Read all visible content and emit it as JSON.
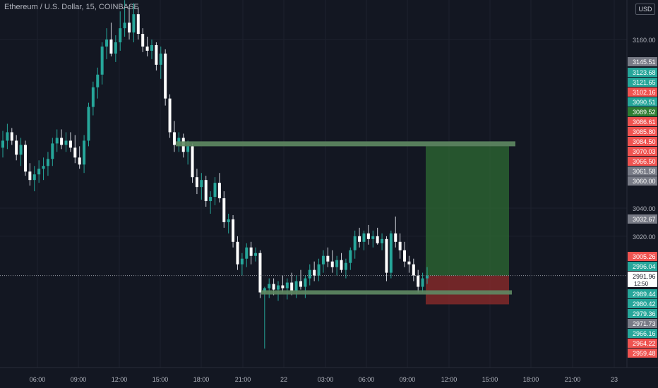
{
  "header": {
    "title": "Ethereum / U.S. Dollar, 15, COINBASE",
    "currency_button": "USD"
  },
  "chart_data": {
    "type": "candlestick",
    "symbol": "Ethereum / U.S. Dollar",
    "interval": "15",
    "exchange": "COINBASE",
    "ylim": [
      2930,
      3200
    ],
    "x_ticks": [
      "06:00",
      "09:00",
      "12:00",
      "15:00",
      "18:00",
      "21:00",
      "22",
      "03:00",
      "06:00",
      "09:00",
      "12:00",
      "15:00",
      "18:00",
      "21:00",
      "23"
    ],
    "y_ticks": [
      3160,
      3040,
      3020
    ],
    "price_tags": [
      {
        "text": "3145.51",
        "color": "#787b86"
      },
      {
        "text": "3123.68",
        "color": "#26a69a"
      },
      {
        "text": "3121.65",
        "color": "#26a69a"
      },
      {
        "text": "3102.16",
        "color": "#ef5350"
      },
      {
        "text": "3090.51",
        "color": "#26a69a"
      },
      {
        "text": "3089.52",
        "color": "#2e7d32"
      },
      {
        "text": "3086.61",
        "color": "#ef5350"
      },
      {
        "text": "3085.80",
        "color": "#ef5350"
      },
      {
        "text": "3084.50",
        "color": "#ef5350"
      },
      {
        "text": "3070.03",
        "color": "#ef5350"
      },
      {
        "text": "3066.50",
        "color": "#ef5350"
      },
      {
        "text": "3061.58",
        "color": "#787b86"
      },
      {
        "text": "3060.00",
        "color": "#787b86"
      },
      {
        "text": "3032.67",
        "color": "#787b86"
      },
      {
        "text": "3005.26",
        "color": "#ef5350"
      },
      {
        "text": "2996.04",
        "color": "#26a69a"
      },
      {
        "text": "2991.96",
        "color": "#ffffff",
        "dark_text": true,
        "sub": "12:50"
      },
      {
        "text": "2989.44",
        "color": "#26a69a"
      },
      {
        "text": "2980.42",
        "color": "#26a69a"
      },
      {
        "text": "2979.36",
        "color": "#26a69a"
      },
      {
        "text": "2971.73",
        "color": "#787b86"
      },
      {
        "text": "2966.16",
        "color": "#26a69a"
      },
      {
        "text": "2964.22",
        "color": "#ef5350"
      },
      {
        "text": "2959.48",
        "color": "#ef5350"
      }
    ],
    "levels": [
      {
        "price": 3086,
        "from": "15:30",
        "to": "16:05"
      },
      {
        "price": 2980,
        "from": "20:55",
        "to": "16:00"
      }
    ],
    "position": {
      "entry": 2991.96,
      "target": 3084,
      "stop": 2971.5
    },
    "series": [
      {
        "o": 3083,
        "h": 3095,
        "l": 3076,
        "c": 3088
      },
      {
        "o": 3088,
        "h": 3100,
        "l": 3082,
        "c": 3094
      },
      {
        "o": 3094,
        "h": 3097,
        "l": 3085,
        "c": 3088
      },
      {
        "o": 3088,
        "h": 3092,
        "l": 3074,
        "c": 3078
      },
      {
        "o": 3078,
        "h": 3090,
        "l": 3070,
        "c": 3085
      },
      {
        "o": 3085,
        "h": 3088,
        "l": 3063,
        "c": 3066
      },
      {
        "o": 3066,
        "h": 3072,
        "l": 3056,
        "c": 3060
      },
      {
        "o": 3060,
        "h": 3070,
        "l": 3052,
        "c": 3064
      },
      {
        "o": 3064,
        "h": 3074,
        "l": 3058,
        "c": 3068
      },
      {
        "o": 3068,
        "h": 3076,
        "l": 3060,
        "c": 3070
      },
      {
        "o": 3070,
        "h": 3080,
        "l": 3063,
        "c": 3075
      },
      {
        "o": 3075,
        "h": 3090,
        "l": 3070,
        "c": 3086
      },
      {
        "o": 3086,
        "h": 3096,
        "l": 3080,
        "c": 3090
      },
      {
        "o": 3090,
        "h": 3096,
        "l": 3082,
        "c": 3085
      },
      {
        "o": 3085,
        "h": 3094,
        "l": 3080,
        "c": 3088
      },
      {
        "o": 3088,
        "h": 3094,
        "l": 3080,
        "c": 3083
      },
      {
        "o": 3083,
        "h": 3092,
        "l": 3072,
        "c": 3076
      },
      {
        "o": 3076,
        "h": 3084,
        "l": 3068,
        "c": 3071
      },
      {
        "o": 3071,
        "h": 3092,
        "l": 3065,
        "c": 3088
      },
      {
        "o": 3088,
        "h": 3115,
        "l": 3084,
        "c": 3112
      },
      {
        "o": 3112,
        "h": 3130,
        "l": 3106,
        "c": 3126
      },
      {
        "o": 3126,
        "h": 3140,
        "l": 3118,
        "c": 3135
      },
      {
        "o": 3135,
        "h": 3158,
        "l": 3128,
        "c": 3155
      },
      {
        "o": 3155,
        "h": 3168,
        "l": 3146,
        "c": 3160
      },
      {
        "o": 3160,
        "h": 3172,
        "l": 3148,
        "c": 3150
      },
      {
        "o": 3150,
        "h": 3163,
        "l": 3144,
        "c": 3158
      },
      {
        "o": 3158,
        "h": 3180,
        "l": 3152,
        "c": 3168
      },
      {
        "o": 3168,
        "h": 3188,
        "l": 3162,
        "c": 3172
      },
      {
        "o": 3172,
        "h": 3184,
        "l": 3160,
        "c": 3165
      },
      {
        "o": 3165,
        "h": 3186,
        "l": 3158,
        "c": 3178
      },
      {
        "o": 3178,
        "h": 3183,
        "l": 3160,
        "c": 3164
      },
      {
        "o": 3164,
        "h": 3168,
        "l": 3151,
        "c": 3155
      },
      {
        "o": 3155,
        "h": 3162,
        "l": 3148,
        "c": 3152
      },
      {
        "o": 3152,
        "h": 3160,
        "l": 3146,
        "c": 3156
      },
      {
        "o": 3156,
        "h": 3158,
        "l": 3138,
        "c": 3142
      },
      {
        "o": 3142,
        "h": 3155,
        "l": 3132,
        "c": 3150
      },
      {
        "o": 3150,
        "h": 3153,
        "l": 3113,
        "c": 3118
      },
      {
        "o": 3118,
        "h": 3121,
        "l": 3090,
        "c": 3094
      },
      {
        "o": 3094,
        "h": 3102,
        "l": 3080,
        "c": 3085
      },
      {
        "o": 3085,
        "h": 3094,
        "l": 3080,
        "c": 3090
      },
      {
        "o": 3090,
        "h": 3093,
        "l": 3076,
        "c": 3080
      },
      {
        "o": 3080,
        "h": 3088,
        "l": 3071,
        "c": 3084
      },
      {
        "o": 3084,
        "h": 3086,
        "l": 3058,
        "c": 3062
      },
      {
        "o": 3062,
        "h": 3068,
        "l": 3050,
        "c": 3055
      },
      {
        "o": 3055,
        "h": 3065,
        "l": 3046,
        "c": 3060
      },
      {
        "o": 3060,
        "h": 3063,
        "l": 3041,
        "c": 3045
      },
      {
        "o": 3045,
        "h": 3052,
        "l": 3036,
        "c": 3048
      },
      {
        "o": 3048,
        "h": 3062,
        "l": 3042,
        "c": 3058
      },
      {
        "o": 3058,
        "h": 3065,
        "l": 3044,
        "c": 3047
      },
      {
        "o": 3047,
        "h": 3052,
        "l": 3026,
        "c": 3030
      },
      {
        "o": 3030,
        "h": 3036,
        "l": 3022,
        "c": 3032
      },
      {
        "o": 3032,
        "h": 3035,
        "l": 3012,
        "c": 3016
      },
      {
        "o": 3016,
        "h": 3020,
        "l": 2996,
        "c": 3000
      },
      {
        "o": 3000,
        "h": 3008,
        "l": 2992,
        "c": 3004
      },
      {
        "o": 3004,
        "h": 3015,
        "l": 2998,
        "c": 3012
      },
      {
        "o": 3012,
        "h": 3016,
        "l": 3000,
        "c": 3006
      },
      {
        "o": 3006,
        "h": 3012,
        "l": 3002,
        "c": 3008
      },
      {
        "o": 3008,
        "h": 3010,
        "l": 2976,
        "c": 2980
      },
      {
        "o": 2980,
        "h": 2984,
        "l": 2940,
        "c": 2983
      },
      {
        "o": 2983,
        "h": 2990,
        "l": 2976,
        "c": 2986
      },
      {
        "o": 2986,
        "h": 2990,
        "l": 2978,
        "c": 2982
      },
      {
        "o": 2982,
        "h": 2988,
        "l": 2974,
        "c": 2985
      },
      {
        "o": 2985,
        "h": 2992,
        "l": 2980,
        "c": 2983
      },
      {
        "o": 2983,
        "h": 2990,
        "l": 2975,
        "c": 2987
      },
      {
        "o": 2987,
        "h": 2994,
        "l": 2978,
        "c": 2981
      },
      {
        "o": 2981,
        "h": 2992,
        "l": 2976,
        "c": 2988
      },
      {
        "o": 2988,
        "h": 2996,
        "l": 2982,
        "c": 2984
      },
      {
        "o": 2984,
        "h": 2992,
        "l": 2976,
        "c": 2990
      },
      {
        "o": 2990,
        "h": 3000,
        "l": 2985,
        "c": 2996
      },
      {
        "o": 2996,
        "h": 3002,
        "l": 2988,
        "c": 2992
      },
      {
        "o": 2992,
        "h": 3004,
        "l": 2988,
        "c": 3000
      },
      {
        "o": 3000,
        "h": 3010,
        "l": 2994,
        "c": 3006
      },
      {
        "o": 3006,
        "h": 3012,
        "l": 2998,
        "c": 3002
      },
      {
        "o": 3002,
        "h": 3010,
        "l": 2994,
        "c": 2998
      },
      {
        "o": 2998,
        "h": 3006,
        "l": 2992,
        "c": 3003
      },
      {
        "o": 3003,
        "h": 3008,
        "l": 2994,
        "c": 2996
      },
      {
        "o": 2996,
        "h": 3004,
        "l": 2990,
        "c": 3001
      },
      {
        "o": 3001,
        "h": 3012,
        "l": 2996,
        "c": 3010
      },
      {
        "o": 3010,
        "h": 3024,
        "l": 3004,
        "c": 3020
      },
      {
        "o": 3020,
        "h": 3026,
        "l": 3012,
        "c": 3016
      },
      {
        "o": 3016,
        "h": 3024,
        "l": 3010,
        "c": 3022
      },
      {
        "o": 3022,
        "h": 3028,
        "l": 3014,
        "c": 3018
      },
      {
        "o": 3018,
        "h": 3024,
        "l": 3012,
        "c": 3020
      },
      {
        "o": 3020,
        "h": 3026,
        "l": 3014,
        "c": 3015
      },
      {
        "o": 3015,
        "h": 3022,
        "l": 3010,
        "c": 3018
      },
      {
        "o": 3018,
        "h": 3020,
        "l": 2988,
        "c": 2994
      },
      {
        "o": 2994,
        "h": 3024,
        "l": 2990,
        "c": 3022
      },
      {
        "o": 3022,
        "h": 3034,
        "l": 3012,
        "c": 3016
      },
      {
        "o": 3016,
        "h": 3022,
        "l": 3004,
        "c": 3010
      },
      {
        "o": 3010,
        "h": 3016,
        "l": 2998,
        "c": 3002
      },
      {
        "o": 3002,
        "h": 3006,
        "l": 2994,
        "c": 3000
      },
      {
        "o": 3000,
        "h": 3004,
        "l": 2988,
        "c": 2992
      },
      {
        "o": 2992,
        "h": 2996,
        "l": 2980,
        "c": 2984
      },
      {
        "o": 2984,
        "h": 2994,
        "l": 2980,
        "c": 2990
      },
      {
        "o": 2990,
        "h": 2998,
        "l": 2986,
        "c": 2992
      }
    ]
  }
}
